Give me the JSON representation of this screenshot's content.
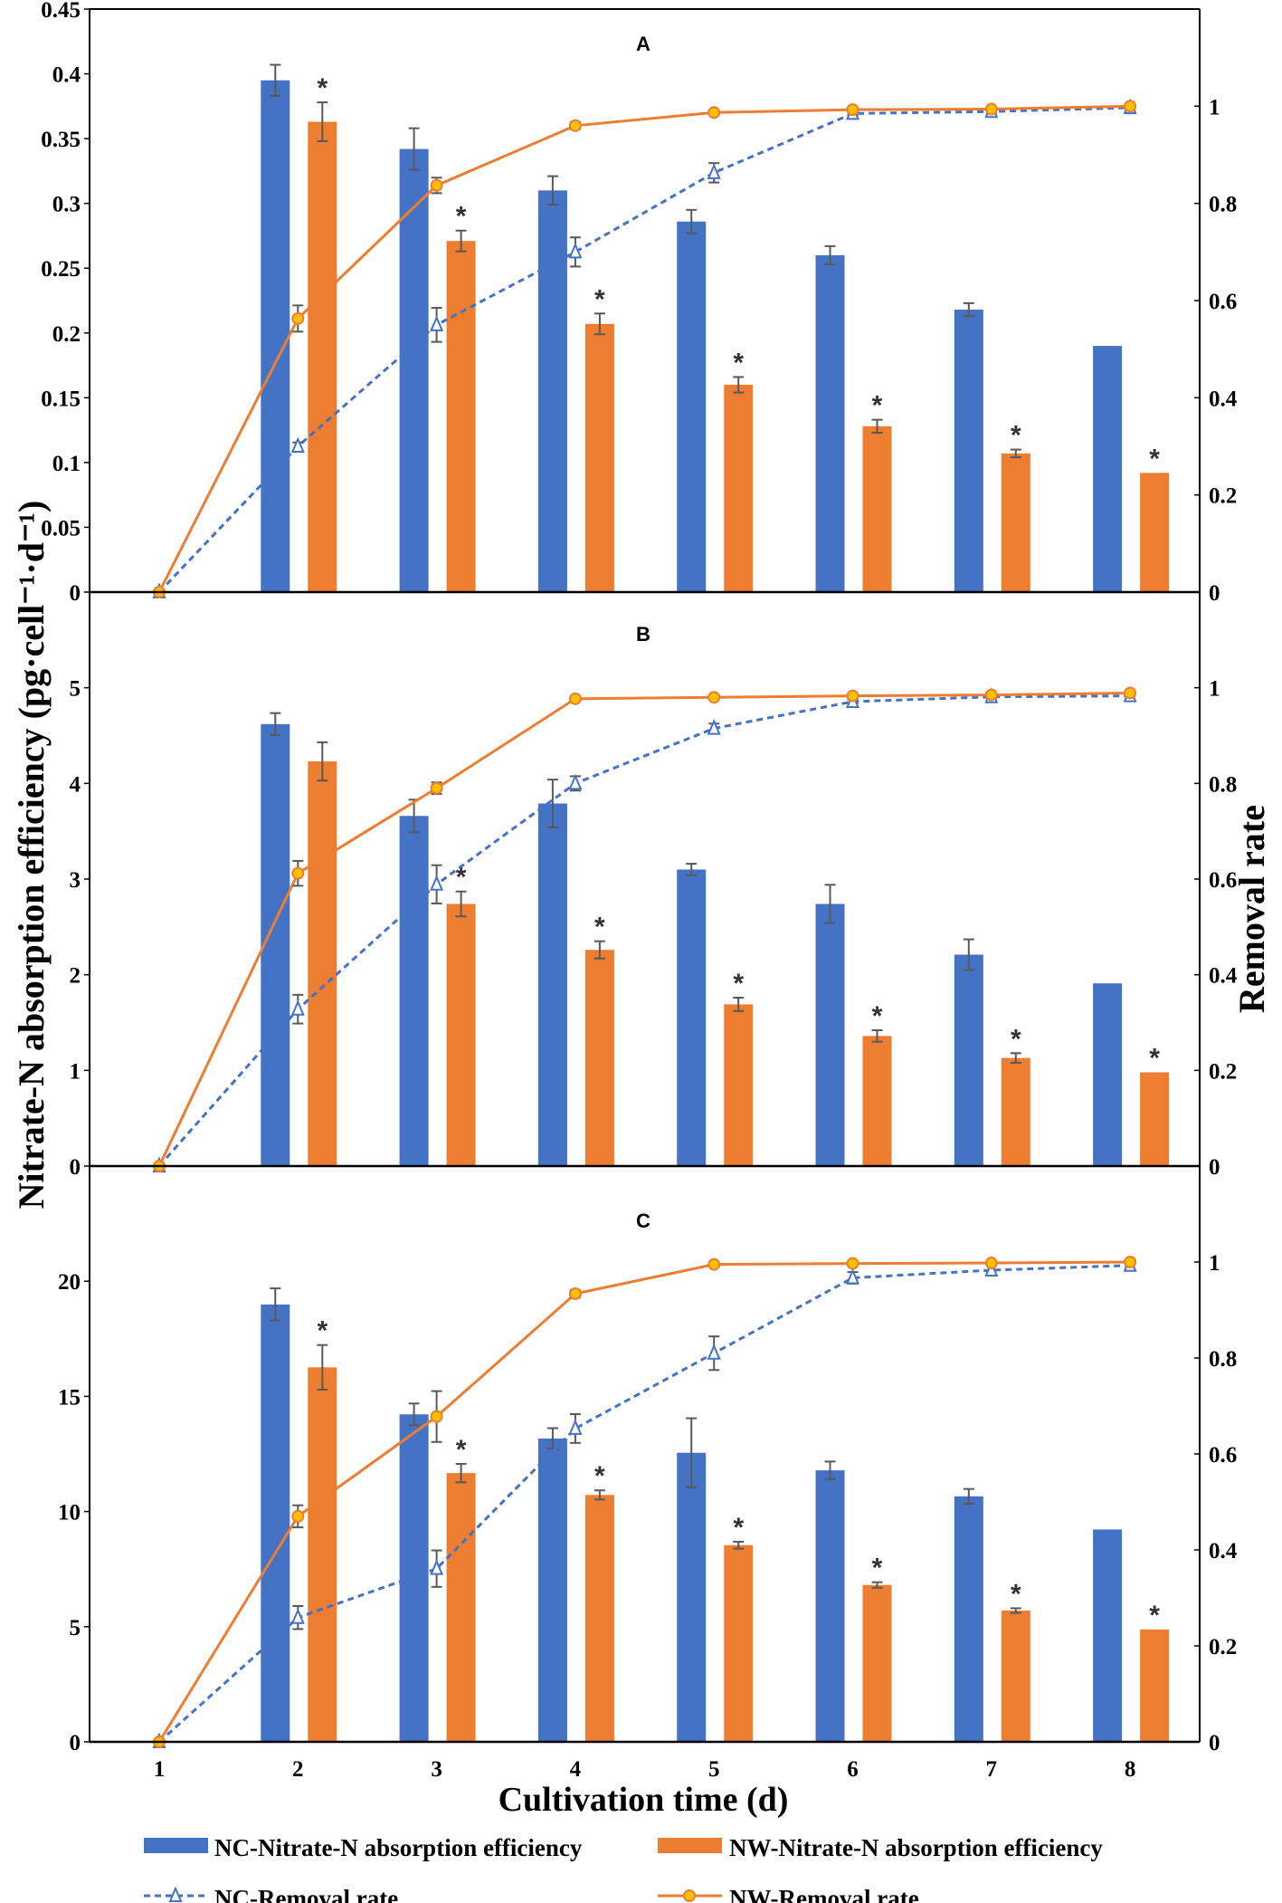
{
  "chart_data": {
    "type": "bar",
    "xlabel": "Cultivation time (d)",
    "ylabel": "Nitrate-N absorption efficiency (pg·cell⁻¹·d⁻¹)",
    "y2label": "Removal rate",
    "categories": [
      "1",
      "2",
      "3",
      "4",
      "5",
      "6",
      "7",
      "8"
    ],
    "legend": {
      "placement": "bottom",
      "items": [
        "NC-Nitrate-N absorption efficiency",
        "NW-Nitrate-N absorption efficiency",
        "NC-Removal rate",
        "NW-Removal rate"
      ]
    },
    "colors": {
      "nc": "#4472C4",
      "nw": "#ED7D31",
      "nw_marker": "#FFC000",
      "error": "#595959"
    },
    "significance_marker": "*",
    "panels": [
      {
        "label": "A",
        "ylim": [
          0,
          0.45
        ],
        "yticks": [
          0,
          0.05,
          0.1,
          0.15,
          0.2,
          0.25,
          0.3,
          0.35,
          0.4,
          0.45
        ],
        "y2lim": [
          0,
          1.2
        ],
        "y2ticks": [
          0,
          0.2,
          0.4,
          0.6,
          0.8,
          1
        ],
        "nc_absorption": {
          "values": [
            0,
            0.395,
            0.342,
            0.31,
            0.286,
            0.26,
            0.218,
            0.19
          ],
          "errors": [
            0,
            0.012,
            0.016,
            0.011,
            0.009,
            0.007,
            0.005,
            0
          ]
        },
        "nw_absorption": {
          "values": [
            0,
            0.363,
            0.271,
            0.207,
            0.16,
            0.128,
            0.107,
            0.092
          ],
          "errors": [
            0,
            0.015,
            0.008,
            0.008,
            0.006,
            0.005,
            0.003,
            0
          ]
        },
        "nc_removal": {
          "values": [
            0,
            0.3,
            0.55,
            0.7,
            0.863,
            0.985,
            0.989,
            0.997
          ],
          "errors": [
            0,
            0.008,
            0.035,
            0.03,
            0.02,
            0.004,
            0.004,
            0
          ]
        },
        "nw_removal": {
          "values": [
            0,
            0.563,
            0.837,
            0.96,
            0.987,
            0.993,
            0.994,
            1.0
          ],
          "errors": [
            0,
            0.027,
            0.016,
            0.007,
            0,
            0,
            0,
            0
          ]
        },
        "significant": [
          false,
          true,
          true,
          true,
          true,
          true,
          true,
          true
        ]
      },
      {
        "label": "B",
        "ylim": [
          0,
          6
        ],
        "yticks": [
          0,
          1,
          2,
          3,
          4,
          5
        ],
        "y2lim": [
          0,
          1.2
        ],
        "y2ticks": [
          0,
          0.2,
          0.4,
          0.6,
          0.8,
          1
        ],
        "nc_absorption": {
          "values": [
            0,
            4.62,
            3.66,
            3.79,
            3.1,
            2.74,
            2.21,
            1.91
          ],
          "errors": [
            0,
            0.115,
            0.17,
            0.25,
            0.06,
            0.2,
            0.16,
            0
          ]
        },
        "nw_absorption": {
          "values": [
            0,
            4.23,
            2.74,
            2.26,
            1.69,
            1.36,
            1.13,
            0.98
          ],
          "errors": [
            0,
            0.2,
            0.13,
            0.09,
            0.07,
            0.06,
            0.05,
            0
          ]
        },
        "nc_removal": {
          "values": [
            0,
            0.328,
            0.589,
            0.8,
            0.915,
            0.971,
            0.981,
            0.983
          ],
          "errors": [
            0,
            0.03,
            0.04,
            0.015,
            0.01,
            0.004,
            0.003,
            0
          ]
        },
        "nw_removal": {
          "values": [
            0,
            0.612,
            0.79,
            0.977,
            0.98,
            0.983,
            0.985,
            0.989
          ],
          "errors": [
            0,
            0.026,
            0.012,
            0,
            0,
            0,
            0,
            0
          ]
        },
        "significant": [
          false,
          false,
          true,
          true,
          true,
          true,
          true,
          true
        ]
      },
      {
        "label": "C",
        "ylim": [
          0,
          25
        ],
        "yticks": [
          0,
          5,
          10,
          15,
          20
        ],
        "y2lim": [
          0,
          1.2
        ],
        "y2ticks": [
          0,
          0.2,
          0.4,
          0.6,
          0.8,
          1
        ],
        "nc_absorption": {
          "values": [
            0,
            18.99,
            14.22,
            13.17,
            12.55,
            11.79,
            10.66,
            9.22
          ],
          "errors": [
            0,
            0.7,
            0.47,
            0.45,
            1.5,
            0.38,
            0.32,
            0
          ]
        },
        "nw_absorption": {
          "values": [
            0,
            16.26,
            11.67,
            10.72,
            8.54,
            6.81,
            5.7,
            4.88
          ],
          "errors": [
            0,
            0.97,
            0.4,
            0.2,
            0.15,
            0.12,
            0.1,
            0
          ]
        },
        "nc_removal": {
          "values": [
            0,
            0.259,
            0.361,
            0.653,
            0.81,
            0.967,
            0.983,
            0.993
          ],
          "errors": [
            0,
            0.024,
            0.038,
            0.03,
            0.035,
            0.012,
            0.01,
            0
          ]
        },
        "nw_removal": {
          "values": [
            0,
            0.47,
            0.678,
            0.934,
            0.995,
            0.997,
            0.998,
            1.0
          ],
          "errors": [
            0,
            0.023,
            0.053,
            0.008,
            0,
            0,
            0,
            0
          ]
        },
        "significant": [
          false,
          true,
          true,
          true,
          true,
          true,
          true,
          true
        ]
      }
    ]
  }
}
